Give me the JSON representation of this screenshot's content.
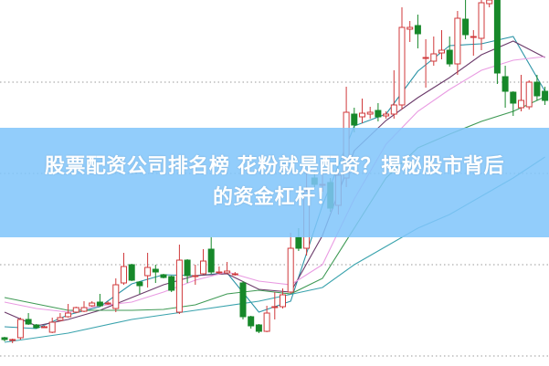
{
  "headline": {
    "line1": "股票配资公司排名榜 花粉就是配资？揭秘股市背后",
    "line2": "的资金杠杆！"
  },
  "chart_data": {
    "type": "candlestick",
    "title": "",
    "xlabel": "",
    "ylabel": "",
    "ylim": [
      0,
      400
    ],
    "grid": "horizontal dotted",
    "grid_levels": [
      10,
      110,
      210,
      310
    ],
    "colors": {
      "up": "#d0393b",
      "down": "#17882a",
      "grid": "#9a9a9a"
    },
    "candles_format": [
      "open",
      "close",
      "high",
      "low"
    ],
    "candles": [
      [
        30,
        28,
        31,
        26
      ],
      [
        27,
        28,
        29,
        24
      ],
      [
        30,
        50,
        52,
        28
      ],
      [
        50,
        45,
        57,
        44
      ],
      [
        44,
        41,
        45,
        40
      ],
      [
        42,
        42,
        43,
        41
      ],
      [
        36,
        47,
        52,
        35
      ],
      [
        49,
        52,
        57,
        48
      ],
      [
        53,
        57,
        67,
        52
      ],
      [
        58,
        63,
        64,
        57
      ],
      [
        59,
        63,
        70,
        58
      ],
      [
        65,
        68,
        70,
        64
      ],
      [
        69,
        65,
        78,
        64
      ],
      [
        67,
        68,
        70,
        66
      ],
      [
        62,
        88,
        95,
        58
      ],
      [
        90,
        108,
        123,
        88
      ],
      [
        110,
        93,
        111,
        92
      ],
      [
        91,
        87,
        92,
        78
      ],
      [
        98,
        107,
        123,
        85
      ],
      [
        105,
        102,
        110,
        90
      ],
      [
        99,
        96,
        100,
        95
      ],
      [
        97,
        82,
        98,
        80
      ],
      [
        58,
        115,
        132,
        56
      ],
      [
        115,
        98,
        116,
        90
      ],
      [
        98,
        98,
        110,
        88
      ],
      [
        100,
        114,
        127,
        99
      ],
      [
        127,
        102,
        140,
        100
      ],
      [
        102,
        102,
        108,
        100
      ],
      [
        101,
        103,
        113,
        100
      ],
      [
        100,
        100,
        102,
        98
      ],
      [
        90,
        53,
        92,
        50
      ],
      [
        53,
        43,
        54,
        40
      ],
      [
        44,
        37,
        45,
        35
      ],
      [
        37,
        57,
        65,
        36
      ],
      [
        64,
        64,
        80,
        50
      ],
      [
        64,
        77,
        84,
        62
      ],
      [
        80,
        128,
        145,
        78
      ],
      [
        140,
        128,
        150,
        125
      ],
      [
        128,
        190,
        210,
        120
      ],
      [
        205,
        198,
        212,
        195
      ],
      [
        198,
        198,
        210,
        190
      ],
      [
        200,
        172,
        205,
        168
      ],
      [
        175,
        208,
        215,
        165
      ],
      [
        205,
        277,
        305,
        195
      ],
      [
        275,
        263,
        282,
        255
      ],
      [
        272,
        276,
        292,
        265
      ],
      [
        275,
        277,
        283,
        270
      ],
      [
        279,
        272,
        287,
        267
      ],
      [
        273,
        275,
        278,
        270
      ],
      [
        275,
        285,
        323,
        270
      ],
      [
        285,
        370,
        392,
        280
      ],
      [
        368,
        370,
        377,
        354
      ],
      [
        372,
        363,
        384,
        347
      ],
      [
        337,
        337,
        357,
        304
      ],
      [
        333,
        341,
        360,
        328
      ],
      [
        342,
        345,
        367,
        335
      ],
      [
        345,
        330,
        360,
        327
      ],
      [
        330,
        380,
        388,
        318
      ],
      [
        379,
        362,
        400,
        357
      ],
      [
        360,
        360,
        367,
        339
      ],
      [
        358,
        397,
        400,
        345
      ],
      [
        396,
        400,
        400,
        392
      ],
      [
        400,
        320,
        400,
        308
      ],
      [
        316,
        300,
        328,
        282
      ],
      [
        299,
        287,
        300,
        273
      ],
      [
        282,
        290,
        318,
        278
      ],
      [
        283,
        310,
        312,
        280
      ],
      [
        310,
        295,
        318,
        290
      ],
      [
        300,
        290,
        305,
        285
      ]
    ],
    "moving_averages": [
      {
        "color": "#2a93a6",
        "points": [
          [
            0,
            42
          ],
          [
            4,
            40
          ],
          [
            8,
            55
          ],
          [
            12,
            64
          ],
          [
            16,
            89
          ],
          [
            20,
            99
          ],
          [
            24,
            98
          ],
          [
            28,
            101
          ],
          [
            32,
            58
          ],
          [
            36,
            70
          ],
          [
            40,
            175
          ],
          [
            44,
            262
          ],
          [
            48,
            275
          ],
          [
            52,
            322
          ],
          [
            56,
            350
          ],
          [
            60,
            352
          ],
          [
            64,
            360
          ],
          [
            68,
            300
          ]
        ]
      },
      {
        "color": "#6b3a6a",
        "points": [
          [
            0,
            58
          ],
          [
            4,
            43
          ],
          [
            8,
            50
          ],
          [
            12,
            60
          ],
          [
            16,
            74
          ],
          [
            20,
            88
          ],
          [
            24,
            98
          ],
          [
            28,
            100
          ],
          [
            32,
            83
          ],
          [
            36,
            80
          ],
          [
            40,
            142
          ],
          [
            44,
            235
          ],
          [
            48,
            268
          ],
          [
            52,
            293
          ],
          [
            56,
            315
          ],
          [
            60,
            340
          ],
          [
            64,
            355
          ],
          [
            68,
            337
          ]
        ]
      },
      {
        "color": "#e99be2",
        "points": [
          [
            0,
            69
          ],
          [
            4,
            62
          ],
          [
            8,
            58
          ],
          [
            12,
            65
          ],
          [
            16,
            69
          ],
          [
            20,
            80
          ],
          [
            24,
            93
          ],
          [
            28,
            102
          ],
          [
            32,
            92
          ],
          [
            36,
            88
          ],
          [
            40,
            110
          ],
          [
            44,
            182
          ],
          [
            48,
            242
          ],
          [
            52,
            278
          ],
          [
            56,
            302
          ],
          [
            60,
            323
          ],
          [
            64,
            334
          ],
          [
            68,
            338
          ]
        ]
      },
      {
        "color": "#3f9a55",
        "points": [
          [
            0,
            74
          ],
          [
            4,
            67
          ],
          [
            8,
            60
          ],
          [
            12,
            60
          ],
          [
            16,
            60
          ],
          [
            20,
            61
          ],
          [
            24,
            66
          ],
          [
            28,
            78
          ],
          [
            32,
            82
          ],
          [
            36,
            78
          ],
          [
            40,
            95
          ],
          [
            44,
            150
          ],
          [
            48,
            205
          ],
          [
            52,
            238
          ],
          [
            56,
            253
          ],
          [
            60,
            267
          ],
          [
            64,
            278
          ],
          [
            68,
            294
          ]
        ]
      },
      {
        "color": "#3aa3ad",
        "points": [
          [
            0,
            25
          ],
          [
            8,
            35
          ],
          [
            16,
            50
          ],
          [
            24,
            60
          ],
          [
            32,
            70
          ],
          [
            40,
            85
          ],
          [
            44,
            110
          ],
          [
            48,
            130
          ],
          [
            52,
            150
          ],
          [
            56,
            165
          ],
          [
            60,
            185
          ],
          [
            64,
            205
          ],
          [
            68,
            228
          ]
        ]
      }
    ]
  }
}
